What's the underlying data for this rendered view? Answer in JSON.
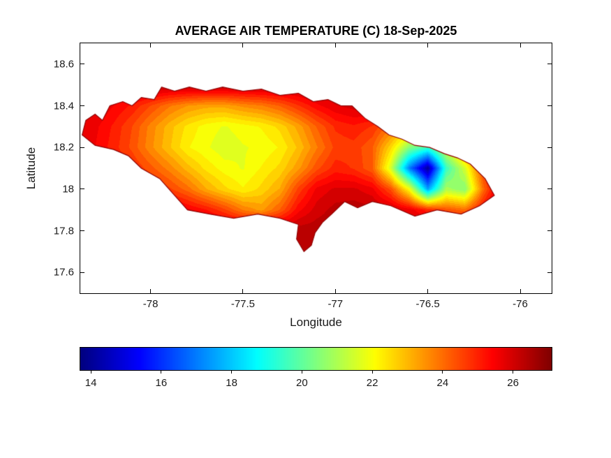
{
  "figure": {
    "background": "#ffffff",
    "axis_color": "#000000",
    "text_color": "#1a1a1a"
  },
  "chart_data": {
    "type": "heatmap",
    "title": "AVERAGE AIR TEMPERATURE (C) 18-Sep-2025",
    "xlabel": "Longitude",
    "ylabel": "Latitude",
    "xlim": [
      -78.38,
      -75.83
    ],
    "ylim": [
      17.5,
      18.7
    ],
    "xticks": [
      -78,
      -77.5,
      -77,
      -76.5,
      -76
    ],
    "yticks": [
      17.6,
      17.8,
      18,
      18.2,
      18.4,
      18.6
    ],
    "grid_lines": false,
    "colormap": "jet",
    "colorbar": {
      "orientation": "horizontal",
      "ticks": [
        14,
        16,
        18,
        20,
        22,
        24,
        26
      ],
      "vmin": 13.7,
      "vmax": 27.1,
      "unit": "C"
    },
    "boundary": [
      [
        -78.37,
        18.26
      ],
      [
        -78.35,
        18.33
      ],
      [
        -78.3,
        18.36
      ],
      [
        -78.26,
        18.33
      ],
      [
        -78.22,
        18.4
      ],
      [
        -78.15,
        18.42
      ],
      [
        -78.1,
        18.4
      ],
      [
        -78.05,
        18.44
      ],
      [
        -77.98,
        18.43
      ],
      [
        -77.94,
        18.49
      ],
      [
        -77.87,
        18.47
      ],
      [
        -77.79,
        18.49
      ],
      [
        -77.7,
        18.47
      ],
      [
        -77.61,
        18.49
      ],
      [
        -77.5,
        18.47
      ],
      [
        -77.4,
        18.48
      ],
      [
        -77.3,
        18.45
      ],
      [
        -77.2,
        18.46
      ],
      [
        -77.12,
        18.42
      ],
      [
        -77.04,
        18.43
      ],
      [
        -76.97,
        18.4
      ],
      [
        -76.91,
        18.4
      ],
      [
        -76.84,
        18.34
      ],
      [
        -76.77,
        18.3
      ],
      [
        -76.71,
        18.26
      ],
      [
        -76.64,
        18.24
      ],
      [
        -76.57,
        18.21
      ],
      [
        -76.49,
        18.2
      ],
      [
        -76.41,
        18.17
      ],
      [
        -76.34,
        18.15
      ],
      [
        -76.27,
        18.12
      ],
      [
        -76.19,
        18.05
      ],
      [
        -76.14,
        17.97
      ],
      [
        -76.22,
        17.92
      ],
      [
        -76.32,
        17.88
      ],
      [
        -76.45,
        17.9
      ],
      [
        -76.57,
        17.87
      ],
      [
        -76.7,
        17.92
      ],
      [
        -76.8,
        17.94
      ],
      [
        -76.88,
        17.91
      ],
      [
        -76.95,
        17.94
      ],
      [
        -77.02,
        17.88
      ],
      [
        -77.07,
        17.84
      ],
      [
        -77.11,
        17.79
      ],
      [
        -77.13,
        17.73
      ],
      [
        -77.17,
        17.7
      ],
      [
        -77.21,
        17.76
      ],
      [
        -77.2,
        17.83
      ],
      [
        -77.3,
        17.86
      ],
      [
        -77.42,
        17.88
      ],
      [
        -77.55,
        17.86
      ],
      [
        -77.68,
        17.88
      ],
      [
        -77.8,
        17.9
      ],
      [
        -77.88,
        17.98
      ],
      [
        -77.95,
        18.05
      ],
      [
        -78.05,
        18.1
      ],
      [
        -78.12,
        18.16
      ],
      [
        -78.2,
        18.19
      ],
      [
        -78.3,
        18.21
      ]
    ],
    "grid": {
      "lon": [
        -78.4,
        -78.3,
        -78.2,
        -78.1,
        -78.0,
        -77.9,
        -77.8,
        -77.7,
        -77.6,
        -77.5,
        -77.4,
        -77.3,
        -77.2,
        -77.1,
        -77.0,
        -76.9,
        -76.8,
        -76.7,
        -76.6,
        -76.5,
        -76.4,
        -76.3,
        -76.2,
        -76.1
      ],
      "lat": [
        17.6,
        17.7,
        17.8,
        17.9,
        18.0,
        18.1,
        18.2,
        18.3,
        18.4,
        18.5,
        18.6
      ],
      "temperature_c": [
        [
          26.5,
          26.5,
          26.5,
          26.5,
          26.5,
          26.5,
          26.5,
          26.5,
          26.5,
          26.5,
          26.5,
          26.5,
          26.5,
          26.5,
          26.5,
          26.5,
          26.5,
          26.5,
          26.5,
          26.5,
          26.5,
          26.5,
          26.5,
          26.5
        ],
        [
          26.5,
          26.5,
          26.5,
          26.5,
          26.5,
          26.5,
          26.5,
          26.5,
          26.5,
          26.5,
          26.5,
          26.5,
          26.5,
          26.5,
          26.5,
          26.5,
          26.5,
          26.5,
          26.5,
          26.5,
          26.5,
          26.5,
          26.5,
          26.5
        ],
        [
          26.4,
          26.4,
          26.4,
          26.4,
          26.4,
          26.4,
          26.4,
          26.4,
          26.4,
          26.4,
          26.4,
          26.4,
          26.4,
          26.4,
          26.4,
          26.4,
          26.4,
          26.4,
          26.4,
          26.4,
          26.4,
          26.4,
          26.4,
          26.4
        ],
        [
          26.4,
          26.4,
          26.4,
          26.3,
          26.2,
          26.0,
          25.6,
          25.2,
          24.6,
          23.8,
          23.4,
          24.2,
          25.4,
          26.0,
          26.3,
          26.4,
          26.3,
          26.1,
          25.7,
          25.0,
          24.4,
          24.0,
          25.4,
          26.4
        ],
        [
          26.2,
          26.0,
          25.8,
          25.5,
          25.1,
          24.6,
          24.0,
          23.2,
          22.6,
          22.2,
          22.6,
          23.2,
          24.6,
          25.6,
          25.9,
          25.9,
          25.6,
          24.4,
          22.0,
          17.5,
          21.0,
          20.5,
          24.0,
          26.3
        ],
        [
          26.0,
          25.7,
          25.3,
          24.9,
          24.3,
          23.7,
          23.0,
          22.4,
          22.0,
          21.8,
          22.2,
          22.6,
          23.4,
          24.4,
          25.0,
          24.8,
          24.2,
          21.5,
          17.0,
          14.0,
          19.5,
          21.5,
          24.6,
          26.3
        ],
        [
          25.9,
          25.5,
          25.0,
          24.4,
          23.6,
          22.9,
          22.2,
          21.9,
          21.6,
          21.8,
          21.9,
          22.2,
          22.9,
          23.8,
          24.6,
          24.7,
          24.2,
          22.6,
          20.5,
          19.5,
          21.5,
          23.8,
          25.6,
          26.4
        ],
        [
          25.9,
          25.6,
          25.1,
          24.5,
          23.7,
          23.0,
          22.4,
          22.0,
          21.8,
          22.0,
          22.2,
          22.6,
          23.3,
          24.2,
          24.9,
          25.1,
          24.8,
          24.0,
          23.2,
          23.0,
          24.2,
          25.6,
          26.4,
          26.4
        ],
        [
          26.1,
          25.9,
          25.5,
          25.1,
          24.5,
          23.9,
          23.5,
          23.3,
          23.3,
          23.6,
          23.8,
          24.2,
          24.8,
          25.4,
          25.8,
          26.0,
          26.2,
          26.4,
          26.4,
          26.4,
          26.4,
          26.4,
          26.4,
          26.4
        ],
        [
          26.4,
          26.4,
          26.4,
          26.4,
          26.4,
          26.4,
          26.4,
          26.4,
          26.4,
          26.4,
          26.4,
          26.4,
          26.4,
          26.4,
          26.4,
          26.4,
          26.4,
          26.4,
          26.4,
          26.4,
          26.4,
          26.4,
          26.4,
          26.4
        ],
        [
          26.4,
          26.4,
          26.4,
          26.4,
          26.4,
          26.4,
          26.4,
          26.4,
          26.4,
          26.4,
          26.4,
          26.4,
          26.4,
          26.4,
          26.4,
          26.4,
          26.4,
          26.4,
          26.4,
          26.4,
          26.4,
          26.4,
          26.4,
          26.4
        ]
      ]
    }
  }
}
